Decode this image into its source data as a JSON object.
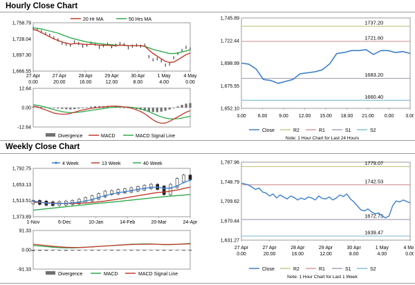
{
  "sections": {
    "hourly_title": "Hourly Close Chart",
    "weekly_title": "Weekly Close Chart"
  },
  "colors": {
    "ma_short": "#c0392b",
    "ma_long": "#2eaa4a",
    "close": "#3a7dc9",
    "r2": "#c9c98a",
    "r1": "#d49a9a",
    "s1": "#a9a0b8",
    "s2": "#86c0d8",
    "frame": "#808080",
    "bars": "#707070"
  },
  "chart_data": [
    {
      "id": "hourly-price-ma",
      "type": "line",
      "title": "Hourly Close Chart",
      "ylim": [
        1666.55,
        1758.79
      ],
      "yticks": [
        "1,758.79",
        "1,728.04",
        "1,697.30",
        "1,666.55"
      ],
      "xticks": [
        [
          "27 Apr",
          "0.00"
        ],
        [
          "27 Apr",
          "20.00"
        ],
        [
          "28 Apr",
          "16.00"
        ],
        [
          "29 Apr",
          "12.00"
        ],
        [
          "30 Apr",
          "8.00"
        ],
        [
          "1 May",
          "4.00"
        ],
        [
          "4 May",
          "0.00"
        ]
      ],
      "legend": [
        "20 Hr MA",
        "50 Hrs MA"
      ],
      "series": [
        {
          "name": "Close",
          "values": [
            1748,
            1746,
            1742,
            1738,
            1735,
            1730,
            1726,
            1720,
            1718,
            1716,
            1722,
            1719,
            1714,
            1716,
            1720,
            1718,
            1712,
            1715,
            1718,
            1713,
            1716,
            1719,
            1717,
            1711,
            1714,
            1716,
            1714,
            1716,
            1694,
            1688,
            1690,
            1686,
            1678,
            1680,
            1692,
            1700,
            1706,
            1712,
            1709
          ]
        },
        {
          "name": "20 Hr MA",
          "values": [
            1746,
            1744,
            1740,
            1736,
            1732,
            1728,
            1725,
            1722,
            1720,
            1718,
            1719,
            1719,
            1718,
            1717,
            1718,
            1717,
            1716,
            1716,
            1716,
            1715,
            1715,
            1716,
            1716,
            1715,
            1715,
            1715,
            1715,
            1714,
            1707,
            1700,
            1695,
            1690,
            1685,
            1683,
            1684,
            1688,
            1693,
            1698,
            1701
          ]
        },
        {
          "name": "50 Hrs MA",
          "values": [
            1749,
            1748,
            1747,
            1745,
            1743,
            1741,
            1739,
            1736,
            1733,
            1730,
            1728,
            1726,
            1724,
            1722,
            1721,
            1720,
            1719,
            1718,
            1717,
            1717,
            1716,
            1716,
            1716,
            1715,
            1715,
            1715,
            1715,
            1714,
            1711,
            1708,
            1706,
            1704,
            1702,
            1700,
            1700,
            1701,
            1703,
            1705,
            1707
          ]
        }
      ]
    },
    {
      "id": "hourly-macd",
      "type": "line",
      "ylim": [
        -12.64,
        12.64
      ],
      "yticks": [
        "12.64",
        "0.00",
        "-12.64"
      ],
      "legend": [
        "Divergence",
        "MACD",
        "MACD Signal Line"
      ],
      "series": [
        {
          "name": "Divergence",
          "values": [
            0.5,
            0.6,
            0.4,
            0.2,
            0,
            -0.3,
            -0.5,
            -0.8,
            -1.0,
            -1.2,
            -1.0,
            -0.6,
            -0.2,
            0.2,
            0.6,
            0.9,
            1.0,
            0.9,
            0.7,
            0.5,
            0.3,
            0.2,
            0,
            -0.3,
            -0.6,
            -1.0,
            -1.4,
            -2.0,
            -2.5,
            -2.8,
            -2.9,
            -2.6,
            -2.0,
            -1.2,
            -0.2,
            0.8,
            1.8,
            2.6,
            3.0
          ]
        },
        {
          "name": "MACD",
          "values": [
            1,
            0.5,
            -0.5,
            -1.5,
            -2.5,
            -3.5,
            -4.0,
            -4.3,
            -4.2,
            -3.8,
            -3.0,
            -2.2,
            -1.5,
            -1.0,
            -0.5,
            -0.2,
            0.2,
            0.5,
            0.8,
            1.0,
            1.0,
            0.8,
            0.5,
            0.2,
            -0.5,
            -1.5,
            -2.5,
            -4.0,
            -6.0,
            -8.0,
            -9.5,
            -10.2,
            -10.0,
            -9.0,
            -7.5,
            -6.0,
            -4.5,
            -3.0,
            -2.0
          ]
        },
        {
          "name": "MACD Signal Line",
          "values": [
            2.0,
            1.5,
            1.0,
            0.3,
            -0.5,
            -1.3,
            -2.0,
            -2.6,
            -3.0,
            -3.2,
            -3.2,
            -3.0,
            -2.6,
            -2.2,
            -1.8,
            -1.4,
            -1.0,
            -0.6,
            -0.2,
            0.2,
            0.4,
            0.5,
            0.5,
            0.4,
            0.2,
            -0.2,
            -0.8,
            -1.6,
            -2.6,
            -3.8,
            -5.0,
            -6.0,
            -6.8,
            -7.3,
            -7.4,
            -7.2,
            -6.8,
            -6.2,
            -5.6
          ]
        }
      ]
    },
    {
      "id": "hourly-pivot",
      "type": "line",
      "ylim": [
        1652.1,
        1745.89
      ],
      "yticks": [
        "1,745.89",
        "1,722.44",
        "1,698.99",
        "1,675.55",
        "1,652.10"
      ],
      "xticks": [
        "3.00",
        "6.00",
        "9.00",
        "12.00",
        "15.00",
        "18.00",
        "21.00",
        "0.00",
        "3.00"
      ],
      "levels": [
        {
          "name": "R2",
          "value": 1737.2,
          "label": "1737.20"
        },
        {
          "name": "R1",
          "value": 1721.6,
          "label": "1721.60"
        },
        {
          "name": "S1",
          "value": 1683.2,
          "label": "1683.20"
        },
        {
          "name": "S2",
          "value": 1660.4,
          "label": "1660.40"
        }
      ],
      "legend": [
        "Close",
        "R2",
        "R1",
        "S1",
        "S2"
      ],
      "note": "Note: 1 Hour Chart for Last 24 Hours",
      "series": [
        {
          "name": "Close",
          "values": [
            1699,
            1698,
            1693,
            1682,
            1681,
            1678,
            1680,
            1682,
            1688,
            1689,
            1690,
            1692,
            1698,
            1709,
            1710,
            1712,
            1712,
            1713,
            1708,
            1712,
            1712,
            1710,
            1711,
            1709
          ]
        }
      ]
    },
    {
      "id": "weekly-price-ma",
      "type": "line",
      "title": "Weekly Close Chart",
      "ylim": [
        1373.89,
        1792.75
      ],
      "yticks": [
        "1,792.75",
        "1,653.13",
        "1,513.51",
        "1,373.89"
      ],
      "xticks": [
        "1-Nov",
        "6-Dec",
        "10-Jan",
        "14-Feb",
        "20-Mar",
        "24-Apr"
      ],
      "legend": [
        "4 Week",
        "13 Week",
        "40 Week"
      ],
      "series": [
        {
          "name": "Close",
          "values": [
            1500,
            1495,
            1488,
            1485,
            1490,
            1495,
            1500,
            1510,
            1525,
            1540,
            1560,
            1580,
            1585,
            1595,
            1600,
            1610,
            1620,
            1630,
            1640,
            1625,
            1580,
            1640,
            1690,
            1720,
            1710
          ]
        },
        {
          "name": "4 Week",
          "values": [
            1510,
            1500,
            1492,
            1488,
            1488,
            1490,
            1495,
            1500,
            1510,
            1522,
            1540,
            1556,
            1570,
            1582,
            1590,
            1600,
            1610,
            1620,
            1628,
            1630,
            1620,
            1622,
            1640,
            1670,
            1690
          ]
        },
        {
          "name": "13 Week",
          "values": [
            1500,
            1498,
            1495,
            1492,
            1490,
            1489,
            1489,
            1490,
            1493,
            1497,
            1503,
            1510,
            1518,
            1527,
            1536,
            1546,
            1555,
            1565,
            1575,
            1583,
            1588,
            1596,
            1605,
            1618,
            1630
          ]
        },
        {
          "name": "40 Week",
          "values": [
            1430,
            1436,
            1442,
            1448,
            1454,
            1460,
            1466,
            1472,
            1478,
            1484,
            1490,
            1495,
            1500,
            1506,
            1512,
            1518,
            1524,
            1530,
            1536,
            1542,
            1547,
            1552,
            1557,
            1561,
            1566
          ]
        }
      ]
    },
    {
      "id": "weekly-macd",
      "type": "line",
      "ylim": [
        -91.33,
        91.33
      ],
      "yticks": [
        "91.33",
        "0.00",
        "-91.33"
      ],
      "legend": [
        "Divergence",
        "MACD",
        "MACD Signal Line"
      ],
      "series": [
        {
          "name": "Divergence",
          "values": [
            -6,
            -5,
            -5,
            -4,
            -4,
            -5,
            -4,
            -4,
            -3,
            -4,
            -4,
            -3,
            -4,
            -4,
            -3,
            -4,
            -4,
            -4,
            -3,
            -4,
            -4,
            -4,
            -3,
            -4,
            -4
          ]
        },
        {
          "name": "MACD",
          "values": [
            20,
            18,
            15,
            12,
            10,
            9,
            9,
            10,
            12,
            14,
            16,
            18,
            20,
            22,
            24,
            26,
            27,
            28,
            28,
            26,
            24,
            24,
            26,
            28,
            30
          ]
        },
        {
          "name": "MACD Signal Line",
          "values": [
            26,
            23,
            20,
            17,
            14,
            12,
            11,
            11,
            12,
            14,
            16,
            18,
            20,
            22,
            23,
            25,
            26,
            26,
            27,
            26,
            25,
            25,
            26,
            27,
            28
          ]
        }
      ]
    },
    {
      "id": "weekly-pivot",
      "type": "line",
      "ylim": [
        1631.27,
        1787.96
      ],
      "yticks": [
        "1,787.96",
        "1,748.79",
        "1,709.62",
        "1,670.44",
        "1,631.27"
      ],
      "xticks": [
        [
          "27 Apr",
          "0.00"
        ],
        [
          "27 Apr",
          "20.00"
        ],
        [
          "28 Apr",
          "16.00"
        ],
        [
          "29 Apr",
          "12.00"
        ],
        [
          "30 Apr",
          "8.00"
        ],
        [
          "1 May",
          "4.00"
        ],
        [
          "4 May",
          "0.00"
        ]
      ],
      "levels": [
        {
          "name": "R2",
          "value": 1779.07,
          "label": "1779.07"
        },
        {
          "name": "R1",
          "value": 1742.53,
          "label": "1742.53"
        },
        {
          "name": "S1",
          "value": 1672.73,
          "label": "1672.73"
        },
        {
          "name": "S2",
          "value": 1639.47,
          "label": "1639.47"
        }
      ],
      "legend": [
        "Close",
        "R2",
        "R1",
        "S1",
        "S2"
      ],
      "note": "Note: 1 Hour Chart for Last 1 Week",
      "series": [
        {
          "name": "Close",
          "values": [
            1746,
            1744,
            1742,
            1738,
            1733,
            1736,
            1728,
            1726,
            1720,
            1724,
            1716,
            1722,
            1718,
            1714,
            1720,
            1717,
            1712,
            1716,
            1713,
            1718,
            1716,
            1712,
            1720,
            1715,
            1714,
            1718,
            1712,
            1716,
            1722,
            1719,
            1724,
            1714,
            1708,
            1700,
            1692,
            1690,
            1694,
            1688,
            1684,
            1686,
            1680,
            1676,
            1680,
            1700,
            1710,
            1708,
            1712,
            1709,
            1706
          ]
        }
      ]
    }
  ]
}
